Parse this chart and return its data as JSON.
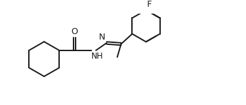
{
  "bg_color": "#ffffff",
  "line_color": "#1a1a1a",
  "line_width": 1.4,
  "font_size": 8.5,
  "figsize": [
    3.58,
    1.54
  ],
  "dpi": 100,
  "xlim": [
    0,
    10
  ],
  "ylim": [
    0,
    4.3
  ]
}
